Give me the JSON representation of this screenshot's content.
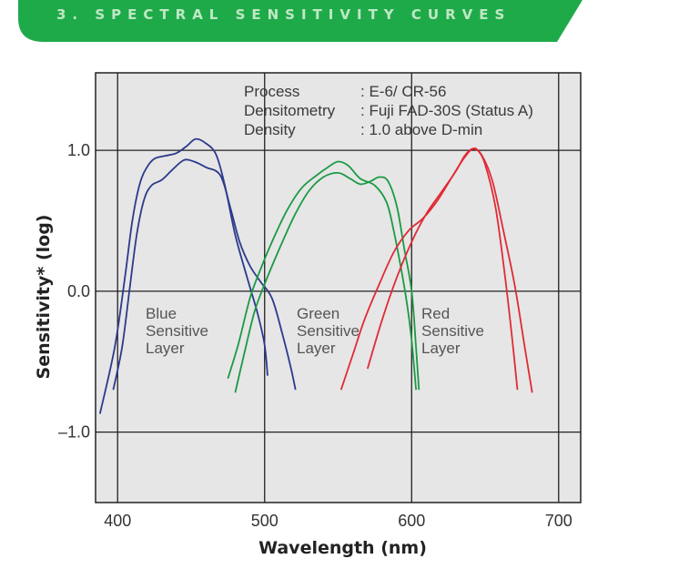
{
  "header": {
    "title": "3. SPECTRAL SENSITIVITY CURVES",
    "color": "#1faa4a"
  },
  "chart_data": {
    "type": "line",
    "title": "",
    "xlabel": "Wavelength (nm)",
    "ylabel": "Sensitivity* (log)",
    "xlim": [
      385,
      715
    ],
    "ylim": [
      -1.5,
      1.55
    ],
    "x_ticks": [
      "400",
      "500",
      "600",
      "700"
    ],
    "y_ticks": [
      "1.0",
      "0.0",
      "–1.0"
    ],
    "grid": true,
    "background": "#e6e6e6",
    "conditions": [
      {
        "label": "Process",
        "value": ": E-6/ CR-56"
      },
      {
        "label": "Densitometry",
        "value": ": Fuji FAD-30S (Status A)"
      },
      {
        "label": "Density",
        "value": ": 1.0 above D-min"
      }
    ],
    "layer_labels": [
      {
        "lines": [
          "Blue",
          "Sensitive",
          "Layer"
        ],
        "color": "#2b3a8c"
      },
      {
        "lines": [
          "Green",
          "Sensitive",
          "Layer"
        ],
        "color": "#1a9a44"
      },
      {
        "lines": [
          "Red",
          "Sensitive",
          "Layer"
        ],
        "color": "#e02a35"
      }
    ],
    "series": [
      {
        "color": "#2b3a8c",
        "points": [
          [
            388,
            -0.87
          ],
          [
            398,
            -0.4
          ],
          [
            405,
            0.1
          ],
          [
            410,
            0.5
          ],
          [
            415,
            0.76
          ],
          [
            420,
            0.88
          ],
          [
            425,
            0.94
          ],
          [
            432,
            0.96
          ],
          [
            440,
            0.98
          ],
          [
            447,
            1.03
          ],
          [
            453,
            1.08
          ],
          [
            460,
            1.05
          ],
          [
            467,
            0.97
          ],
          [
            473,
            0.75
          ],
          [
            480,
            0.4
          ],
          [
            488,
            0.1
          ],
          [
            495,
            -0.15
          ],
          [
            500,
            -0.38
          ],
          [
            502,
            -0.6
          ]
        ]
      },
      {
        "color": "#2b3a8c",
        "points": [
          [
            397,
            -0.7
          ],
          [
            403,
            -0.4
          ],
          [
            408,
            0.0
          ],
          [
            413,
            0.4
          ],
          [
            418,
            0.65
          ],
          [
            423,
            0.75
          ],
          [
            430,
            0.79
          ],
          [
            437,
            0.86
          ],
          [
            445,
            0.93
          ],
          [
            452,
            0.92
          ],
          [
            460,
            0.88
          ],
          [
            470,
            0.82
          ],
          [
            477,
            0.58
          ],
          [
            483,
            0.35
          ],
          [
            490,
            0.18
          ],
          [
            497,
            0.07
          ],
          [
            505,
            -0.05
          ],
          [
            512,
            -0.3
          ],
          [
            518,
            -0.55
          ],
          [
            521,
            -0.7
          ]
        ]
      },
      {
        "color": "#1a9a44",
        "points": [
          [
            475,
            -0.62
          ],
          [
            482,
            -0.38
          ],
          [
            490,
            -0.05
          ],
          [
            497,
            0.15
          ],
          [
            505,
            0.35
          ],
          [
            515,
            0.57
          ],
          [
            525,
            0.73
          ],
          [
            535,
            0.82
          ],
          [
            543,
            0.88
          ],
          [
            550,
            0.92
          ],
          [
            557,
            0.89
          ],
          [
            565,
            0.8
          ],
          [
            575,
            0.75
          ],
          [
            583,
            0.63
          ],
          [
            588,
            0.42
          ],
          [
            593,
            0.15
          ],
          [
            597,
            -0.1
          ],
          [
            600,
            -0.35
          ],
          [
            603,
            -0.7
          ]
        ]
      },
      {
        "color": "#1a9a44",
        "points": [
          [
            480,
            -0.72
          ],
          [
            486,
            -0.45
          ],
          [
            493,
            -0.15
          ],
          [
            500,
            0.05
          ],
          [
            510,
            0.3
          ],
          [
            520,
            0.53
          ],
          [
            530,
            0.71
          ],
          [
            540,
            0.81
          ],
          [
            550,
            0.84
          ],
          [
            558,
            0.8
          ],
          [
            565,
            0.76
          ],
          [
            572,
            0.78
          ],
          [
            578,
            0.81
          ],
          [
            584,
            0.78
          ],
          [
            590,
            0.6
          ],
          [
            595,
            0.3
          ],
          [
            600,
            0.0
          ],
          [
            603,
            -0.4
          ],
          [
            605,
            -0.7
          ]
        ]
      },
      {
        "color": "#e02a35",
        "points": [
          [
            570,
            -0.55
          ],
          [
            580,
            -0.2
          ],
          [
            590,
            0.1
          ],
          [
            600,
            0.35
          ],
          [
            610,
            0.55
          ],
          [
            620,
            0.7
          ],
          [
            630,
            0.85
          ],
          [
            636,
            0.96
          ],
          [
            641,
            1.01
          ],
          [
            645,
            1.0
          ],
          [
            650,
            0.9
          ],
          [
            657,
            0.6
          ],
          [
            663,
            0.15
          ],
          [
            668,
            -0.3
          ],
          [
            672,
            -0.7
          ]
        ]
      },
      {
        "color": "#e02a35",
        "points": [
          [
            552,
            -0.7
          ],
          [
            560,
            -0.45
          ],
          [
            568,
            -0.2
          ],
          [
            578,
            0.05
          ],
          [
            588,
            0.28
          ],
          [
            598,
            0.43
          ],
          [
            608,
            0.52
          ],
          [
            618,
            0.65
          ],
          [
            628,
            0.82
          ],
          [
            636,
            0.95
          ],
          [
            642,
            1.01
          ],
          [
            648,
            0.96
          ],
          [
            655,
            0.78
          ],
          [
            662,
            0.45
          ],
          [
            670,
            0.05
          ],
          [
            677,
            -0.4
          ],
          [
            682,
            -0.72
          ]
        ]
      }
    ]
  }
}
